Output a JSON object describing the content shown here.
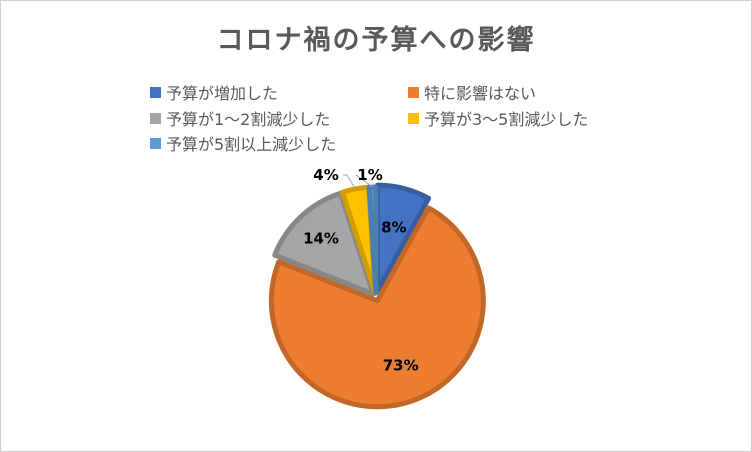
{
  "chart_data": {
    "type": "pie",
    "title": "コロナ禍の予算への影響",
    "legend_position": "top",
    "slices": [
      {
        "name": "予算が増加した",
        "value": 8,
        "label": "8%",
        "color": "#4472C4"
      },
      {
        "name": "特に影響はない",
        "value": 73,
        "label": "73%",
        "color": "#ED7D31"
      },
      {
        "name": "予算が1〜2割減少した",
        "value": 14,
        "label": "14%",
        "color": "#A5A5A5"
      },
      {
        "name": "予算が3〜5割減少した",
        "value": 4,
        "label": "4%",
        "color": "#FFC000"
      },
      {
        "name": "予算が5割以上減少した",
        "value": 1,
        "label": "1%",
        "color": "#5B9BD5"
      }
    ]
  }
}
